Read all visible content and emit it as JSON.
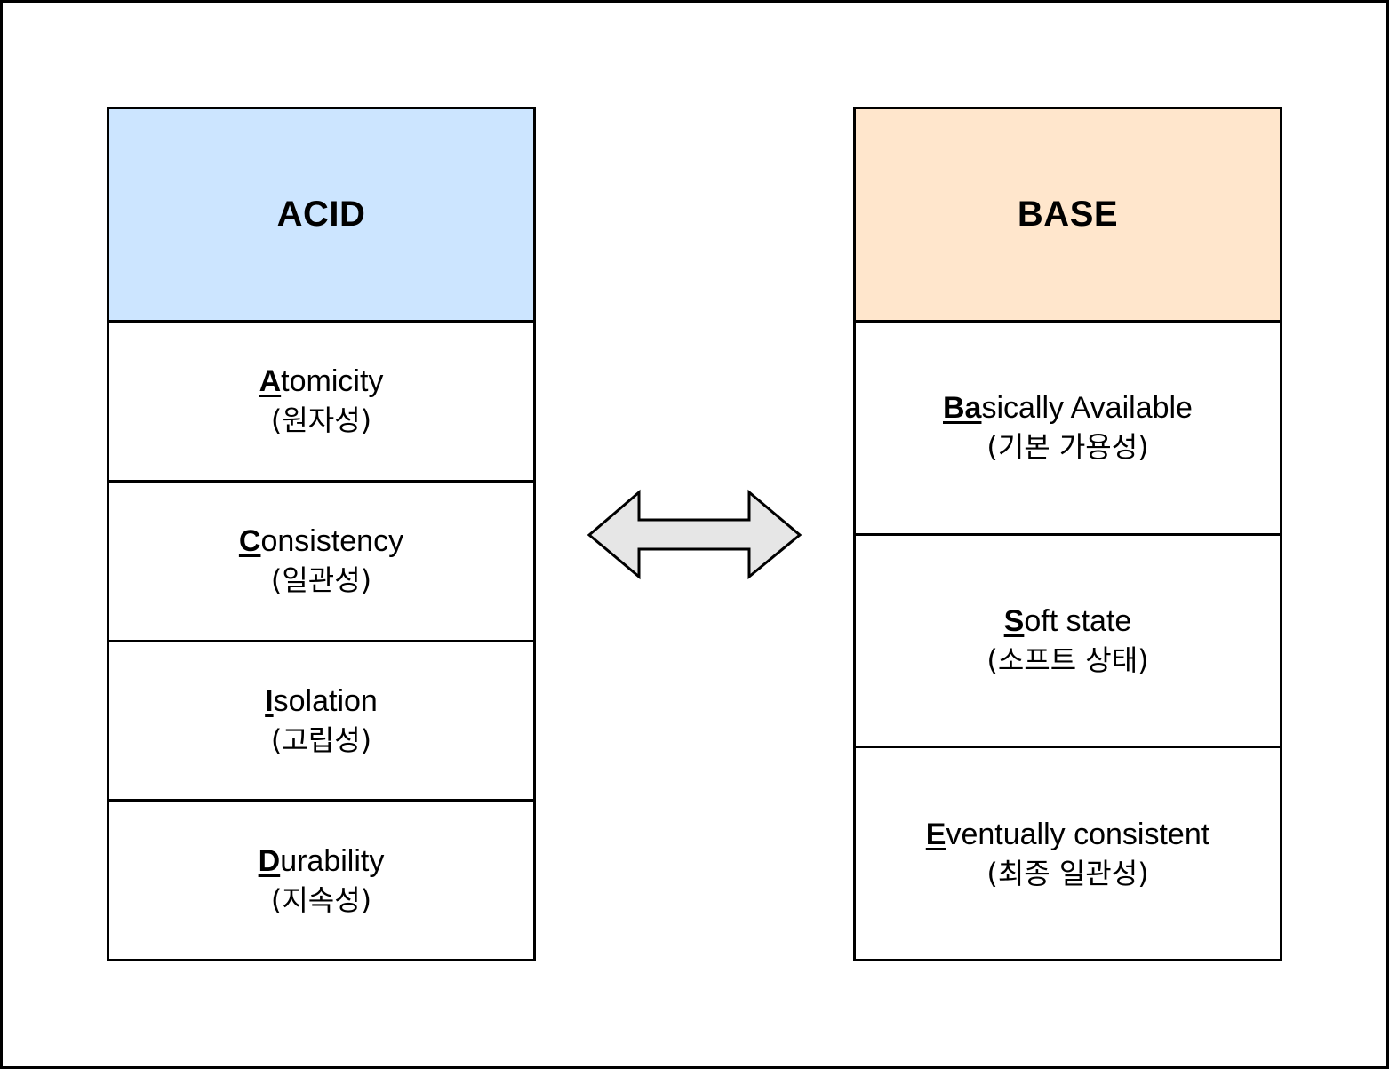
{
  "colors": {
    "acid_header": "#cce5ff",
    "base_header": "#ffe6cc",
    "arrow_fill": "#e6e6e6",
    "stroke": "#000000"
  },
  "acid": {
    "title": "ACID",
    "items": [
      {
        "key": "A",
        "rest": "tomicity",
        "korean": "(원자성)"
      },
      {
        "key": "C",
        "rest": "onsistency",
        "korean": "(일관성)"
      },
      {
        "key": "I",
        "rest": "solation",
        "korean": "(고립성)"
      },
      {
        "key": "D",
        "rest": "urability",
        "korean": "(지속성)"
      }
    ]
  },
  "base": {
    "title": "BASE",
    "items": [
      {
        "key": "Ba",
        "rest": "sically Available",
        "korean": "(기본 가용성)"
      },
      {
        "key": "S",
        "rest": "oft state",
        "korean": "(소프트 상태)"
      },
      {
        "key": "E",
        "rest": "ventually consistent",
        "korean": "(최종 일관성)"
      }
    ]
  },
  "arrow": {
    "icon": "double-headed-arrow-icon"
  }
}
